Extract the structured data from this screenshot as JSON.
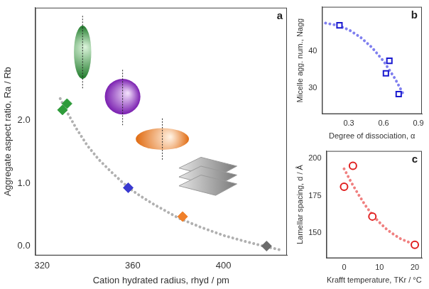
{
  "chart_data": [
    {
      "type": "scatter",
      "title": "a",
      "x_label": "Cation hydrated radius, rhyd / pm",
      "y_label": "Aggregate aspect ratio, Ra / Rb",
      "xlim": [
        317,
        428
      ],
      "xticks": [
        320,
        360,
        400
      ],
      "ylim": [
        -0.15,
        3.8
      ],
      "yticks": [
        {
          "value": 0,
          "label": "0.0"
        },
        {
          "value": 1,
          "label": "1.0"
        },
        {
          "value": 2,
          "label": "2.0"
        }
      ],
      "grid": false,
      "series": [
        {
          "type": "scatter",
          "marker": "diamond",
          "colors": [
            "#2e9b3a",
            "#2e9b3a",
            "#3a3ad0",
            "#f0802a",
            "#6b6b6b"
          ],
          "x": [
            329,
            331,
            358,
            382,
            419
          ],
          "y": [
            2.17,
            2.27,
            0.93,
            0.47,
            0.0
          ]
        },
        {
          "type": "line",
          "line_style": "dotted",
          "color": "#b0b0b0",
          "x": [
            328,
            330,
            335,
            340,
            345,
            350,
            355,
            360,
            365,
            370,
            380,
            390,
            400,
            410,
            420,
            425
          ],
          "y": [
            2.35,
            2.2,
            1.88,
            1.6,
            1.38,
            1.2,
            1.03,
            0.88,
            0.76,
            0.65,
            0.45,
            0.3,
            0.17,
            0.07,
            -0.02,
            -0.06
          ]
        }
      ]
    },
    {
      "type": "scatter",
      "title": "b",
      "x_label": "Degree of dissociation, α",
      "y_label": "Micelle agg. num., Nagg",
      "xlim": [
        0.07,
        0.93
      ],
      "xticks": [
        0.3,
        0.6,
        0.9
      ],
      "ylim": [
        23,
        52
      ],
      "yticks": [
        30,
        40
      ],
      "grid": false,
      "series": [
        {
          "type": "scatter",
          "marker": "open_square",
          "color": "#1a1ad0",
          "x": [
            0.22,
            0.62,
            0.65,
            0.73
          ],
          "y": [
            47,
            34,
            37.4,
            28.4
          ]
        },
        {
          "type": "line",
          "line_style": "dotted",
          "color": "#7f7fef",
          "x": [
            0.1,
            0.2,
            0.3,
            0.4,
            0.5,
            0.6,
            0.7,
            0.78
          ],
          "y": [
            47.6,
            47,
            45.8,
            43.8,
            41,
            37.3,
            32.5,
            27.8
          ]
        }
      ]
    },
    {
      "type": "scatter",
      "title": "c",
      "x_label": "Krafft temperature, TKr / °C",
      "y_label": "Lamellar spacing, d / Å",
      "xlim": [
        -5,
        22
      ],
      "xticks": [
        0,
        10,
        20
      ],
      "ylim": [
        133,
        205
      ],
      "yticks": [
        150,
        175,
        200
      ],
      "grid": false,
      "series": [
        {
          "type": "scatter",
          "marker": "open_circle",
          "color": "#e02020",
          "x": [
            0,
            2.5,
            8,
            20
          ],
          "y": [
            181,
            195,
            161,
            142
          ]
        },
        {
          "type": "line",
          "line_style": "dotted",
          "color": "#f08080",
          "x": [
            0,
            2,
            4,
            6,
            8,
            10,
            12,
            14,
            16,
            18,
            20,
            21
          ],
          "y": [
            193,
            184,
            176,
            168.5,
            162,
            157,
            152.5,
            149,
            146,
            144,
            142.5,
            142
          ]
        }
      ]
    }
  ]
}
